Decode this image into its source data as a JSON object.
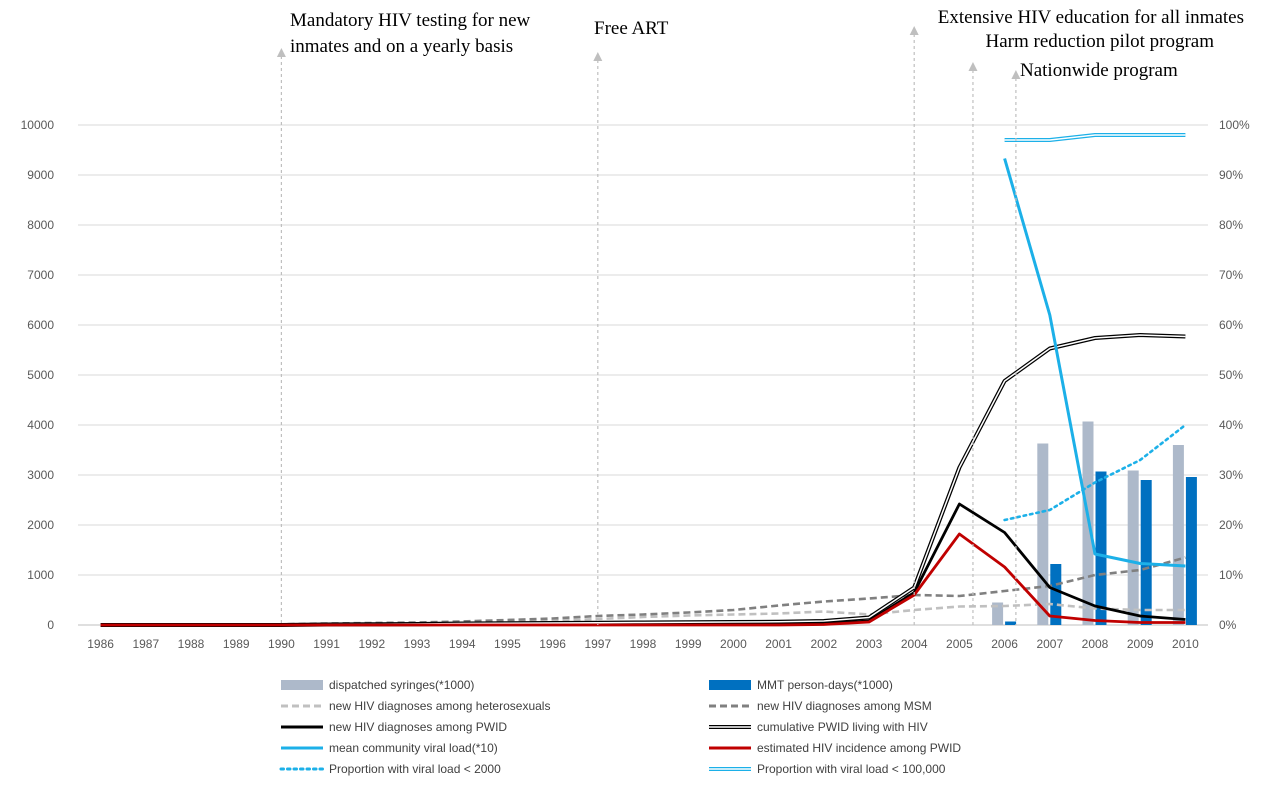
{
  "chart_data": {
    "type": "line",
    "x": [
      1986,
      1987,
      1988,
      1989,
      1990,
      1991,
      1992,
      1993,
      1994,
      1995,
      1996,
      1997,
      1998,
      1999,
      2000,
      2001,
      2002,
      2003,
      2004,
      2005,
      2006,
      2007,
      2008,
      2009,
      2010
    ],
    "y_left": {
      "min": 0,
      "max": 10000,
      "ticks": [
        0,
        1000,
        2000,
        3000,
        4000,
        5000,
        6000,
        7000,
        8000,
        9000,
        10000
      ]
    },
    "y_right": {
      "min": 0,
      "max": 100,
      "ticks": [
        "0%",
        "10%",
        "20%",
        "30%",
        "40%",
        "50%",
        "60%",
        "70%",
        "80%",
        "90%",
        "100%"
      ]
    },
    "grid": true,
    "legend_position": "bottom",
    "bar_series": [
      {
        "name": "dispatched syringes(*1000)",
        "color": "#ADB9CA",
        "points": [
          [
            2006,
            450
          ],
          [
            2007,
            3630
          ],
          [
            2008,
            4070
          ],
          [
            2009,
            3090
          ],
          [
            2010,
            3600
          ]
        ]
      },
      {
        "name": "MMT person-days(*1000)",
        "color": "#0070C0",
        "points": [
          [
            2006,
            70
          ],
          [
            2007,
            1220
          ],
          [
            2008,
            3070
          ],
          [
            2009,
            2900
          ],
          [
            2010,
            2960
          ]
        ]
      }
    ],
    "line_series": [
      {
        "name": "new HIV diagnoses among heterosexuals",
        "color": "#C0C0C0",
        "style": "dashed",
        "axis": "left",
        "values": [
          0,
          0,
          0,
          5,
          10,
          20,
          25,
          30,
          35,
          50,
          80,
          120,
          160,
          190,
          210,
          230,
          270,
          210,
          300,
          370,
          380,
          420,
          330,
          300,
          300
        ]
      },
      {
        "name": "new HIV diagnoses among MSM",
        "color": "#808080",
        "style": "dashed",
        "axis": "left",
        "values": [
          0,
          0,
          0,
          5,
          15,
          30,
          40,
          50,
          70,
          100,
          130,
          180,
          210,
          250,
          300,
          390,
          470,
          530,
          600,
          580,
          680,
          780,
          1000,
          1100,
          1350
        ]
      },
      {
        "name": "new HIV diagnoses among PWID",
        "color": "#000000",
        "style": "solid",
        "axis": "left",
        "values": [
          0,
          0,
          0,
          0,
          0,
          5,
          5,
          5,
          10,
          10,
          15,
          20,
          20,
          20,
          20,
          20,
          30,
          80,
          650,
          2420,
          1850,
          750,
          380,
          180,
          110
        ]
      },
      {
        "name": "cumulative PWID living with HIV",
        "color": "#000000",
        "style": "double",
        "axis": "left",
        "values": [
          0,
          0,
          0,
          0,
          0,
          10,
          15,
          20,
          30,
          35,
          40,
          45,
          50,
          55,
          60,
          65,
          80,
          150,
          750,
          3150,
          4880,
          5530,
          5740,
          5800,
          5770
        ]
      },
      {
        "name": "mean community  viral load(*10)",
        "color": "#1CB0E8",
        "style": "solid",
        "axis": "left",
        "points": [
          [
            2006,
            9330
          ],
          [
            2007,
            6200
          ],
          [
            2008,
            1420
          ],
          [
            2009,
            1230
          ],
          [
            2010,
            1180
          ]
        ]
      },
      {
        "name": "estimated HIV incidence among PWID",
        "color": "#C00000",
        "style": "solid",
        "axis": "left",
        "values": [
          0,
          0,
          0,
          0,
          0,
          0,
          0,
          0,
          0,
          0,
          0,
          0,
          0,
          0,
          0,
          0,
          10,
          60,
          600,
          1820,
          1160,
          180,
          90,
          50,
          50
        ]
      },
      {
        "name": "Proportion with viral load < 2000",
        "color": "#1CB0E8",
        "style": "dotted",
        "axis": "right",
        "points": [
          [
            2006,
            21
          ],
          [
            2007,
            23
          ],
          [
            2008,
            28.5
          ],
          [
            2009,
            33
          ],
          [
            2010,
            40
          ]
        ]
      },
      {
        "name": "Proportion with viral load < 100,000",
        "color": "#1CB0E8",
        "style": "double",
        "axis": "right",
        "points": [
          [
            2006,
            97
          ],
          [
            2007,
            97
          ],
          [
            2008,
            98
          ],
          [
            2009,
            98
          ],
          [
            2010,
            98
          ]
        ]
      }
    ],
    "events": [
      {
        "x": 1990,
        "lines": [
          "Mandatory HIV testing for new",
          "inmates and on a yearly basis"
        ]
      },
      {
        "x": 1997,
        "lines": [
          "Free ART"
        ]
      },
      {
        "x": 2004,
        "lines": [
          "Extensive HIV education for all inmates"
        ]
      },
      {
        "x": 2005.3,
        "lines": [
          "Harm reduction pilot program"
        ]
      },
      {
        "x": 2006.25,
        "lines": [
          "Nationwide program"
        ]
      }
    ]
  }
}
